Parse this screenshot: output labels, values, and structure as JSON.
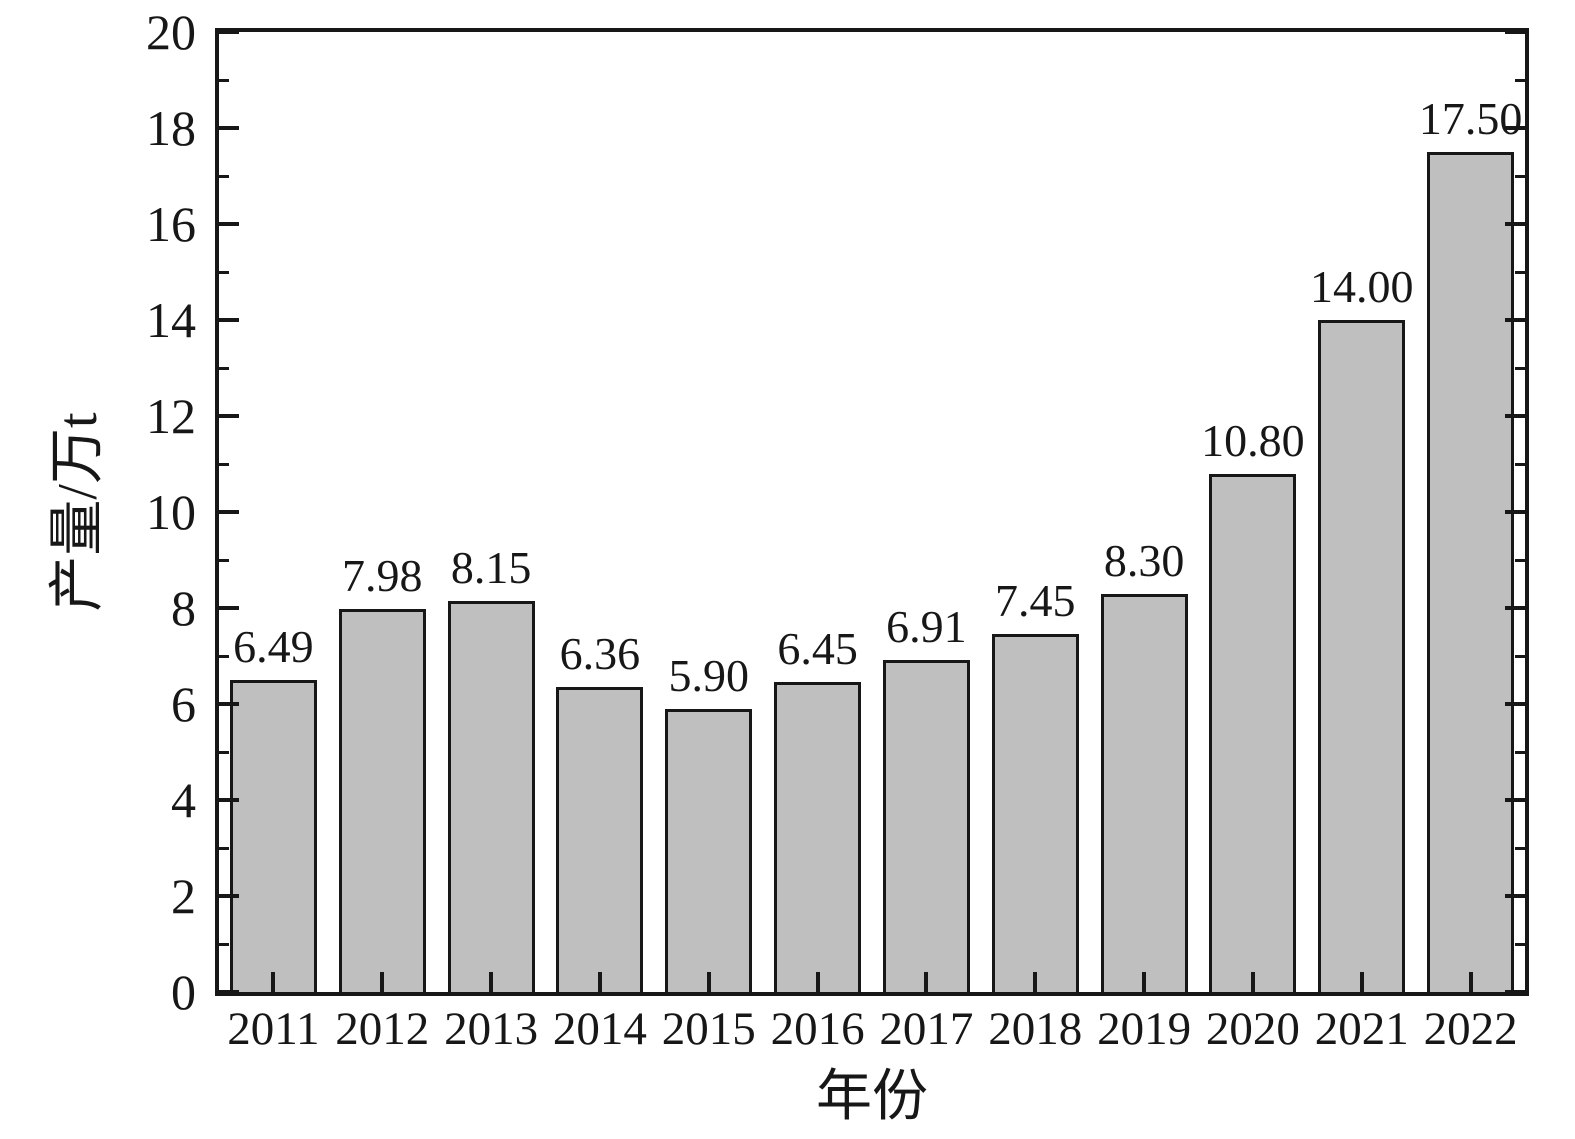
{
  "chart_data": {
    "type": "bar",
    "title": "",
    "xlabel": "年份",
    "ylabel": "产量/万t",
    "categories": [
      "2011",
      "2012",
      "2013",
      "2014",
      "2015",
      "2016",
      "2017",
      "2018",
      "2019",
      "2020",
      "2021",
      "2022"
    ],
    "values": [
      6.49,
      7.98,
      8.15,
      6.36,
      5.9,
      6.45,
      6.91,
      7.45,
      8.3,
      10.8,
      14.0,
      17.5
    ],
    "value_labels": [
      "6.49",
      "7.98",
      "8.15",
      "6.36",
      "5.90",
      "6.45",
      "6.91",
      "7.45",
      "8.30",
      "10.80",
      "14.00",
      "17.50"
    ],
    "ylim": [
      0,
      20
    ],
    "ytick_step": 2,
    "ytick_labels": [
      "0",
      "2",
      "4",
      "6",
      "8",
      "10",
      "12",
      "14",
      "16",
      "18",
      "20"
    ],
    "yminor_step": 1,
    "grid": false,
    "legend": null,
    "bar_fill_color": "#bfbfbf",
    "bar_edge_color": "#171717",
    "axis_color": "#171717",
    "background_color": "#ffffff"
  }
}
